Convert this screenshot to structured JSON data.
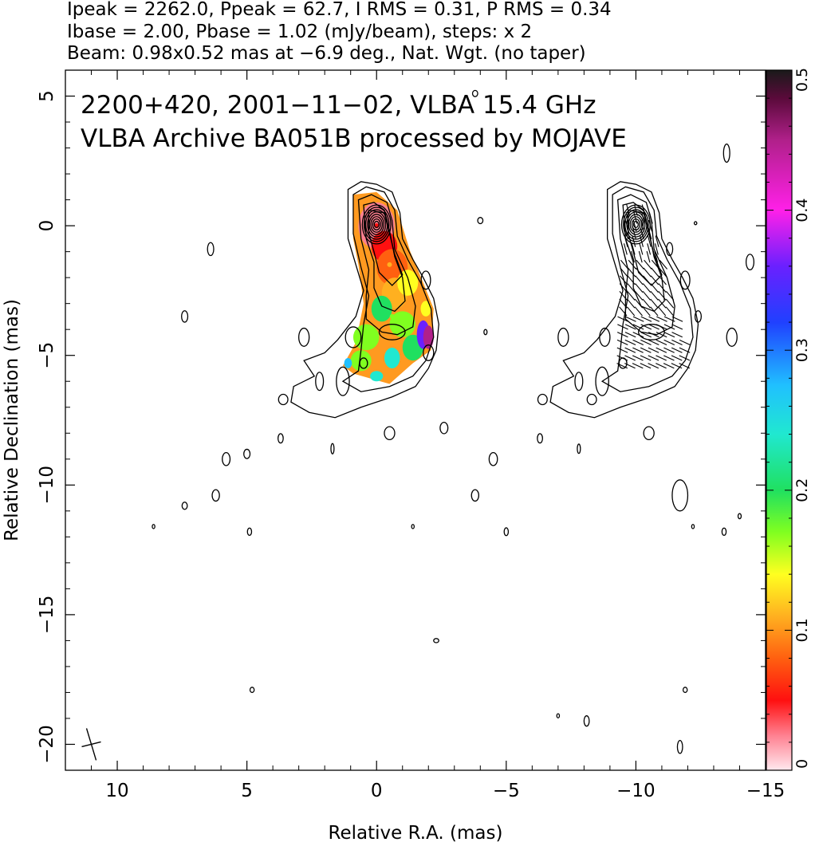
{
  "header": {
    "line1": "Ipeak = 2262.0, Ppeak = 62.7, I RMS = 0.31, P RMS = 0.34",
    "line2": "Ibase = 2.00, Pbase = 1.02 (mJy/beam), steps: x 2",
    "line3": "Beam: 0.98x0.52 mas at −6.9 deg., Nat. Wgt. (no taper)"
  },
  "chart_data": {
    "type": "contour",
    "title": "2200+420, 2001−11−02, VLBA 15.4 GHz",
    "subtitle": "VLBA Archive BA051B processed by MOJAVE",
    "xlabel": "Relative R.A. (mas)",
    "ylabel": "Relative Declination (mas)",
    "xlim": [
      12,
      -15
    ],
    "ylim": [
      -21,
      6
    ],
    "x_ticks": [
      10,
      5,
      0,
      -5,
      -10,
      -15
    ],
    "x_tick_labels": [
      "10",
      "5",
      "0",
      "−5",
      "−10",
      "−15"
    ],
    "y_ticks": [
      5,
      0,
      -5,
      -10,
      -15,
      -20
    ],
    "y_tick_labels": [
      "5",
      "0",
      "−5",
      "−10",
      "−15",
      "−20"
    ],
    "colorbar": {
      "range": [
        0,
        0.5
      ],
      "ticks": [
        0,
        0.1,
        0.2,
        0.3,
        0.4,
        0.5
      ],
      "tick_labels": [
        "0",
        "0.1",
        "0.2",
        "0.3",
        "0.4",
        "0.5"
      ]
    },
    "peak_offset_mas": [
      -10,
      0
    ],
    "beam": {
      "x": 11,
      "y": -20,
      "major_mas": 0.98,
      "minor_mas": 0.52,
      "pa_deg": -6.9
    },
    "polarization_fraction_samples": [
      {
        "x": 0,
        "y": 0,
        "v": 0.05
      },
      {
        "x": -0.5,
        "y": -1.5,
        "v": 0.12
      },
      {
        "x": -0.6,
        "y": -3.5,
        "v": 0.17
      },
      {
        "x": -1.4,
        "y": -5,
        "v": 0.22
      },
      {
        "x": -2,
        "y": -4.2,
        "v": 0.45
      }
    ],
    "i_peak_mjy_per_beam": 2262.0,
    "p_peak_mjy_per_beam": 62.7
  }
}
